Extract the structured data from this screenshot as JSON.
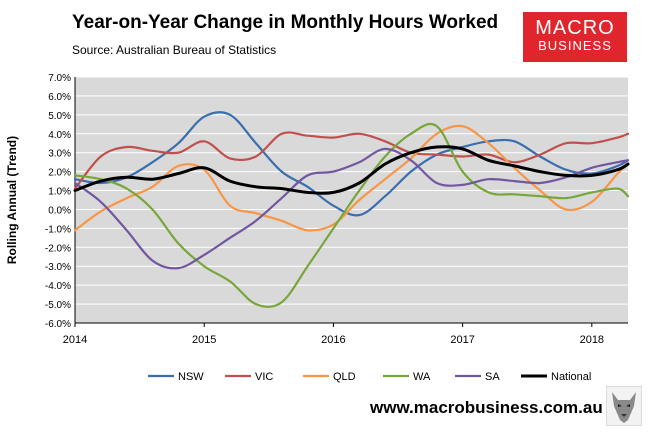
{
  "header": {
    "title": "Year-on-Year Change in Monthly Hours Worked",
    "source": "Source: Australian Bureau of Statistics"
  },
  "logo": {
    "line1": "MACRO",
    "line2": "BUSINESS"
  },
  "footer": {
    "url": "www.macrobusiness.com.au"
  },
  "chart_data": {
    "type": "line",
    "ylabel": "Rolling Annual (Trend)",
    "ylim": [
      -6,
      7
    ],
    "yticks": [
      -6,
      -5,
      -4,
      -3,
      -2,
      -1,
      0,
      1,
      2,
      3,
      4,
      5,
      6,
      7
    ],
    "ytick_labels": [
      "-6.0%",
      "-5.0%",
      "-4.0%",
      "-3.0%",
      "-2.0%",
      "-1.0%",
      "0.0%",
      "1.0%",
      "2.0%",
      "3.0%",
      "4.0%",
      "5.0%",
      "6.0%",
      "7.0%"
    ],
    "xlim": [
      2014.0,
      2018.28
    ],
    "xticks": [
      2014,
      2015,
      2016,
      2017,
      2018
    ],
    "xtick_labels": [
      "2014",
      "2015",
      "2016",
      "2017",
      "2018"
    ],
    "grid": true,
    "legend_position": "bottom",
    "x": [
      2014.0,
      2014.2,
      2014.4,
      2014.6,
      2014.8,
      2015.0,
      2015.2,
      2015.4,
      2015.6,
      2015.8,
      2016.0,
      2016.2,
      2016.4,
      2016.6,
      2016.8,
      2017.0,
      2017.2,
      2017.4,
      2017.6,
      2017.8,
      2018.0,
      2018.2,
      2018.28
    ],
    "series": [
      {
        "name": "NSW",
        "color": "#3a6eaf",
        "values": [
          1.6,
          1.4,
          1.7,
          2.5,
          3.5,
          4.9,
          5.0,
          3.5,
          2.0,
          1.2,
          0.2,
          -0.3,
          0.7,
          2.0,
          2.9,
          3.3,
          3.6,
          3.6,
          2.8,
          2.1,
          1.9,
          2.3,
          2.6
        ]
      },
      {
        "name": "VIC",
        "color": "#c0504d",
        "values": [
          1.1,
          2.8,
          3.3,
          3.1,
          3.0,
          3.6,
          2.7,
          2.8,
          4.0,
          3.9,
          3.8,
          4.0,
          3.6,
          3.0,
          2.9,
          2.8,
          2.9,
          2.5,
          2.9,
          3.5,
          3.5,
          3.8,
          4.0
        ]
      },
      {
        "name": "QLD",
        "color": "#f79646",
        "values": [
          -1.1,
          -0.1,
          0.6,
          1.2,
          2.3,
          2.1,
          0.2,
          -0.2,
          -0.6,
          -1.1,
          -0.8,
          0.5,
          1.6,
          2.7,
          4.0,
          4.4,
          3.5,
          2.2,
          1.0,
          0.0,
          0.4,
          1.9,
          2.4
        ]
      },
      {
        "name": "WA",
        "color": "#77a639",
        "values": [
          1.8,
          1.6,
          1.1,
          0.0,
          -1.8,
          -3.0,
          -3.8,
          -5.0,
          -4.9,
          -3.0,
          -1.0,
          1.0,
          2.8,
          4.0,
          4.4,
          2.0,
          0.9,
          0.8,
          0.7,
          0.6,
          0.9,
          1.1,
          0.7
        ]
      },
      {
        "name": "SA",
        "color": "#7157a0",
        "values": [
          1.4,
          0.4,
          -1.1,
          -2.7,
          -3.1,
          -2.4,
          -1.5,
          -0.6,
          0.6,
          1.8,
          2.0,
          2.5,
          3.2,
          2.6,
          1.4,
          1.3,
          1.6,
          1.5,
          1.4,
          1.7,
          2.2,
          2.5,
          2.6
        ]
      },
      {
        "name": "National",
        "color": "#000000",
        "values": [
          1.0,
          1.5,
          1.7,
          1.6,
          1.9,
          2.2,
          1.5,
          1.2,
          1.1,
          0.9,
          0.9,
          1.4,
          2.4,
          3.0,
          3.3,
          3.2,
          2.6,
          2.3,
          2.0,
          1.8,
          1.8,
          2.1,
          2.4
        ]
      }
    ]
  }
}
